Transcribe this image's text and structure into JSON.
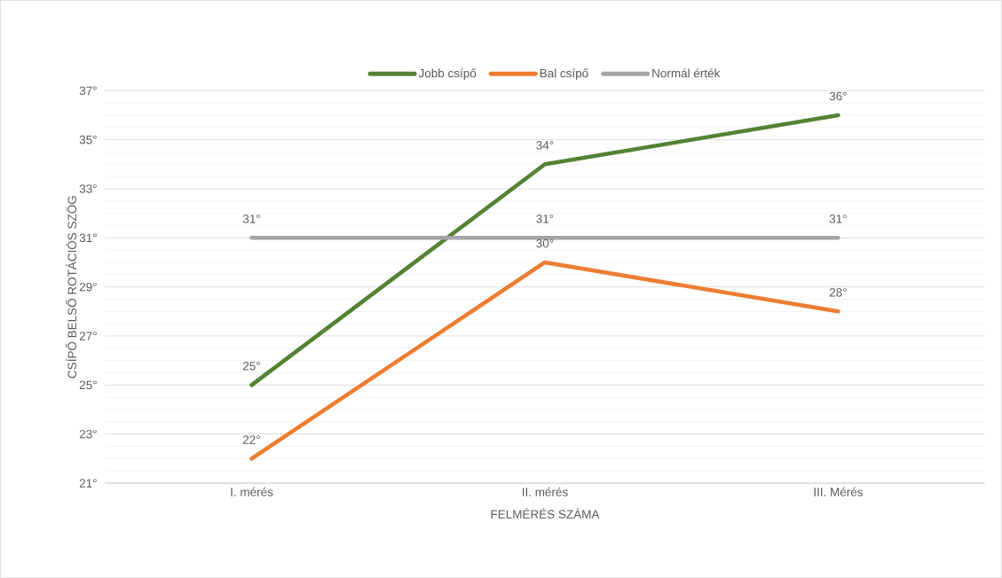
{
  "chart_data": {
    "type": "line",
    "xlabel": "FELMÉRÉS SZÁMA",
    "ylabel": "CSÍPŐ BELSŐ ROTÁCIÓS SZÖG",
    "categories": [
      "I. mérés",
      "II. mérés",
      "III. Mérés"
    ],
    "series": [
      {
        "name": "Jobb csípő",
        "color": "#548235",
        "values": [
          25,
          34,
          36
        ],
        "value_labels": [
          "25°",
          "34°",
          "36°"
        ]
      },
      {
        "name": "Bal csípő",
        "color": "#ed7d31",
        "values": [
          22,
          30,
          28
        ],
        "value_labels": [
          "22°",
          "30°",
          "28°"
        ]
      },
      {
        "name": "Normál érték",
        "color": "#a5a5a5",
        "values": [
          31,
          31,
          31
        ],
        "value_labels": [
          "31°",
          "31°",
          "31°"
        ]
      }
    ],
    "ylim": [
      21,
      37
    ],
    "yticks": [
      {
        "value": 21,
        "label": "21°"
      },
      {
        "value": 23,
        "label": "23°"
      },
      {
        "value": 25,
        "label": "25°"
      },
      {
        "value": 27,
        "label": "27°"
      },
      {
        "value": 29,
        "label": "29°"
      },
      {
        "value": 31,
        "label": "31°"
      },
      {
        "value": 33,
        "label": "33°"
      },
      {
        "value": 35,
        "label": "35°"
      },
      {
        "value": 37,
        "label": "37°"
      }
    ],
    "grid": true,
    "legend": "top",
    "marker": "none",
    "line_style": "solid"
  }
}
